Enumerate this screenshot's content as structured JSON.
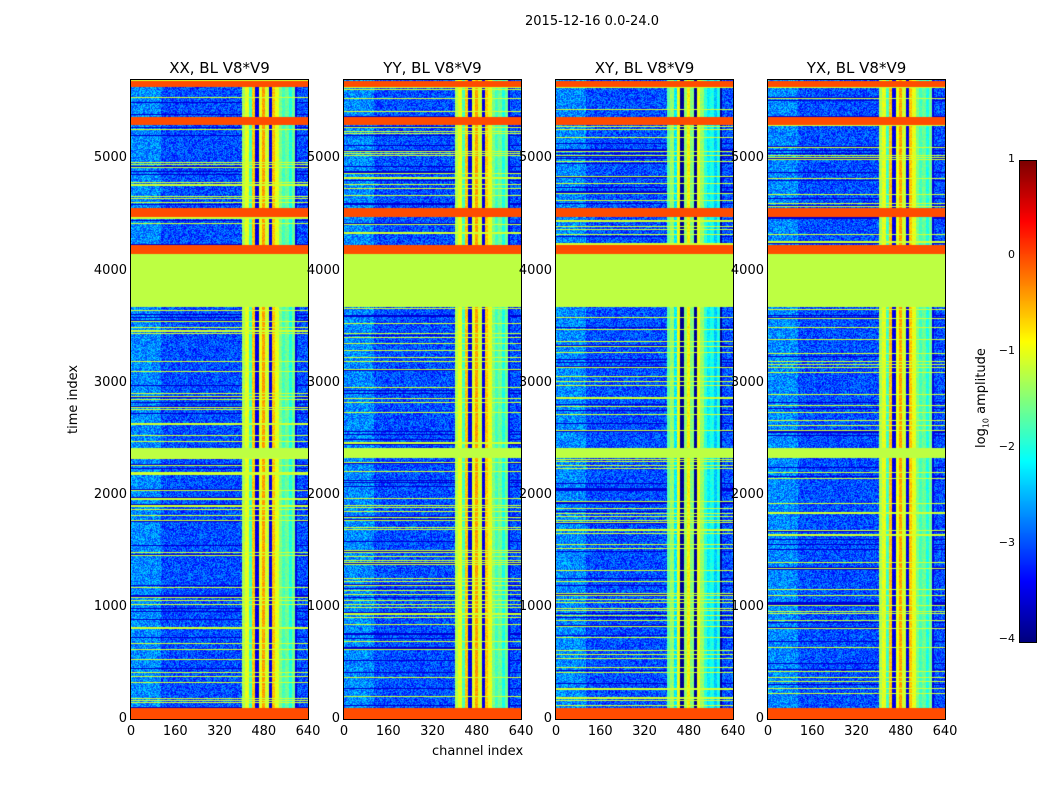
{
  "chart_data": {
    "type": "heatmap",
    "suptitle": "2015-12-16 0.0-24.0",
    "xlabel": "channel index",
    "ylabel": "time index",
    "xlim": [
      0,
      640
    ],
    "ylim": [
      0,
      5700
    ],
    "xticks": [
      "0",
      "160",
      "320",
      "480",
      "640"
    ],
    "yticks": [
      "0",
      "1000",
      "2000",
      "3000",
      "4000",
      "5000"
    ],
    "panels": [
      {
        "title": "XX, BL V8*V9"
      },
      {
        "title": "YY, BL V8*V9"
      },
      {
        "title": "XY, BL V8*V9"
      },
      {
        "title": "YX, BL V8*V9"
      }
    ],
    "colorbar": {
      "label": "log10 amplitude",
      "label_main": "log",
      "label_sub": "10",
      "label_tail": " amplitude",
      "colormap": "jet",
      "range": [
        -4,
        1
      ],
      "ticks": [
        "1",
        "0",
        "−1",
        "−2",
        "−3",
        "−4"
      ]
    },
    "flagged_time_bands": [
      [
        0,
        100,
        0.0
      ],
      [
        2330,
        2420,
        -1.2
      ],
      [
        3680,
        4150,
        -1.2
      ],
      [
        4150,
        4230,
        0.0
      ],
      [
        4480,
        4560,
        0.0
      ],
      [
        5300,
        5370,
        0.0
      ],
      [
        5640,
        5700,
        0.0
      ]
    ],
    "rfi_channel_range": [
      400,
      600
    ],
    "background_level": -3.0
  }
}
